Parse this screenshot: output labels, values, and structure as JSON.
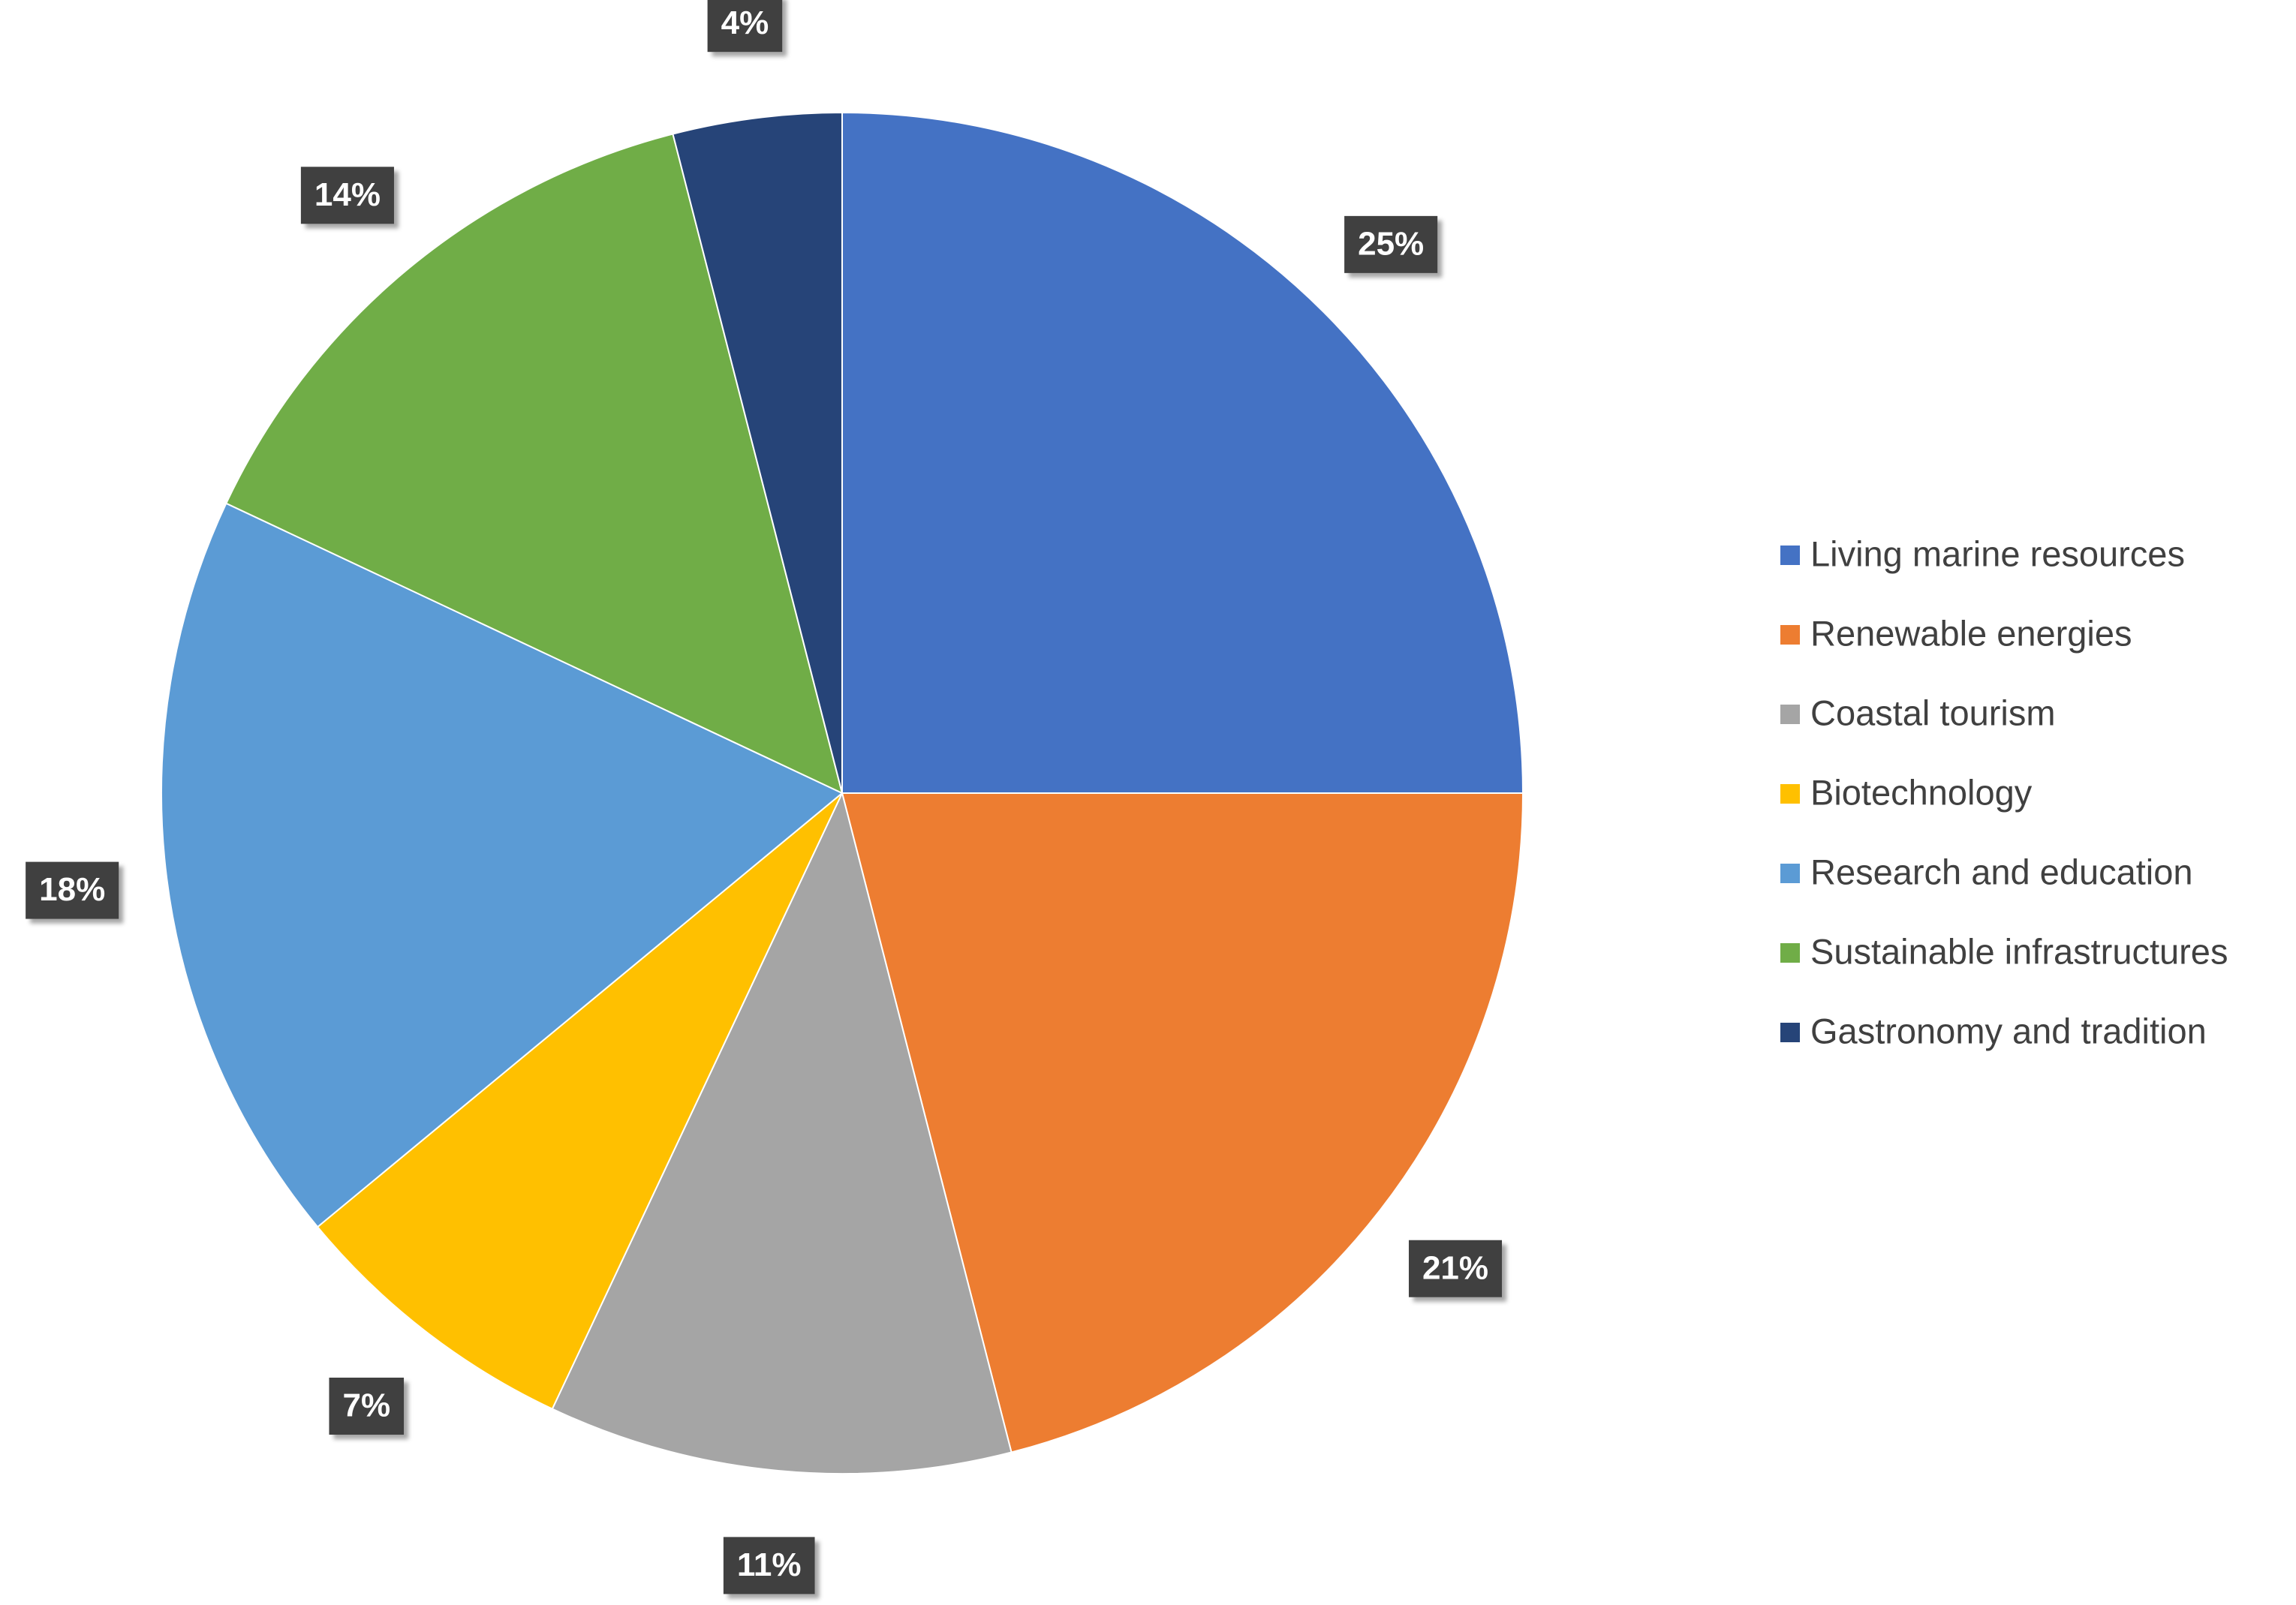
{
  "chart_data": {
    "type": "pie",
    "categories": [
      "Living marine resources",
      "Renewable energies",
      "Coastal tourism",
      "Biotechnology",
      "Research and education",
      "Sustainable infrastructures",
      "Gastronomy and tradition"
    ],
    "values": [
      25,
      21,
      11,
      7,
      18,
      14,
      4
    ],
    "value_labels": [
      "25%",
      "21%",
      "11%",
      "7%",
      "18%",
      "14%",
      "4%"
    ],
    "colors": [
      "#4472c4",
      "#ed7d31",
      "#a5a5a5",
      "#ffc000",
      "#5b9bd5",
      "#70ad47",
      "#264478"
    ],
    "legend": "right"
  }
}
